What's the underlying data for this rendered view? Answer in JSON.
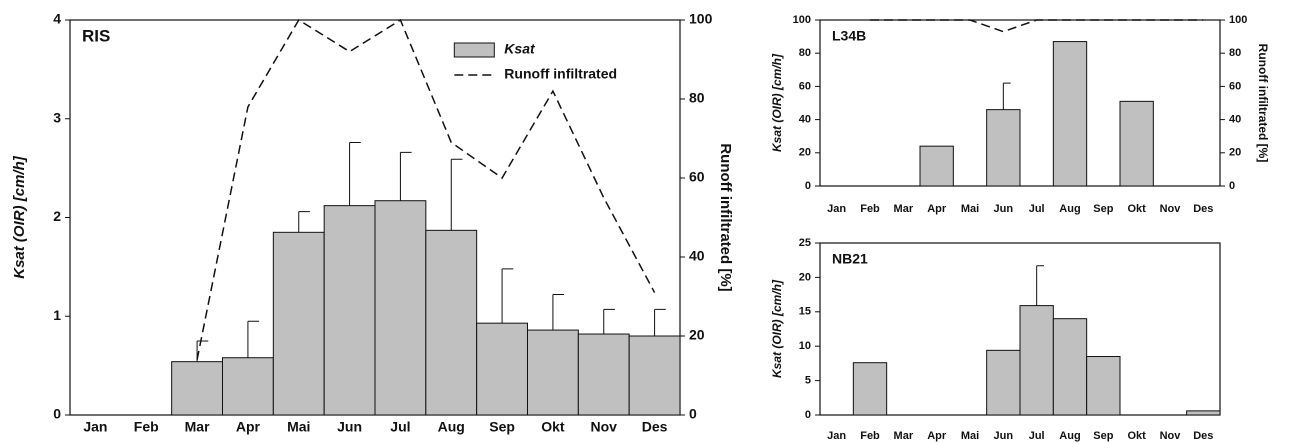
{
  "chart_data": [
    {
      "type": "bar",
      "title": "RIS",
      "categories": [
        "Jan",
        "Feb",
        "Mar",
        "Apr",
        "Mai",
        "Jun",
        "Jul",
        "Aug",
        "Sep",
        "Okt",
        "Nov",
        "Des"
      ],
      "series": [
        {
          "name": "Ksat",
          "color": "#c0c0c0",
          "values": [
            0,
            0,
            0.54,
            0.58,
            1.85,
            2.12,
            2.17,
            1.87,
            0.93,
            0.86,
            0.82,
            0.8
          ],
          "errors": [
            null,
            null,
            0.21,
            0.37,
            0.21,
            0.64,
            0.49,
            0.72,
            0.55,
            0.36,
            0.25,
            0.27
          ]
        },
        {
          "name": "Runoff infiltrated",
          "color": "#111111",
          "axis": "y2",
          "values": [
            null,
            null,
            14,
            78,
            100,
            92,
            100,
            69,
            60,
            82,
            55,
            31
          ]
        }
      ],
      "ylabel": "Ksat (OIR) [cm/h]",
      "y2label": "Runoff infiltrated [%]",
      "ylim": [
        0,
        4
      ],
      "yticks": [
        0,
        1,
        2,
        3,
        4
      ],
      "y2lim": [
        0,
        100
      ],
      "y2ticks": [
        0,
        20,
        40,
        60,
        80,
        100
      ],
      "legend": "upper right"
    },
    {
      "type": "bar",
      "title": "L34B",
      "categories": [
        "Jan",
        "Feb",
        "Mar",
        "Apr",
        "Mai",
        "Jun",
        "Jul",
        "Aug",
        "Sep",
        "Okt",
        "Nov",
        "Des"
      ],
      "series": [
        {
          "name": "Ksat",
          "color": "#c0c0c0",
          "values": [
            0,
            0,
            0,
            24,
            0,
            46,
            0,
            87,
            0,
            51,
            0,
            0
          ],
          "errors": [
            null,
            null,
            null,
            null,
            null,
            16,
            null,
            null,
            null,
            null,
            null,
            null
          ]
        },
        {
          "name": "Runoff infiltrated",
          "color": "#111111",
          "axis": "y2",
          "values": [
            null,
            100,
            100,
            100,
            100,
            93,
            100,
            100,
            100,
            100,
            100,
            100
          ]
        }
      ],
      "ylabel": "Ksat (OIR) [cm/h]",
      "y2label": "Runoff infiltrated [%]",
      "ylim": [
        0,
        100
      ],
      "yticks": [
        0,
        20,
        40,
        60,
        80,
        100
      ],
      "y2lim": [
        0,
        100
      ],
      "y2ticks": [
        0,
        20,
        40,
        60,
        80,
        100
      ]
    },
    {
      "type": "bar",
      "title": "NB21",
      "categories": [
        "Jan",
        "Feb",
        "Mar",
        "Apr",
        "Mai",
        "Jun",
        "Jul",
        "Aug",
        "Sep",
        "Okt",
        "Nov",
        "Des"
      ],
      "series": [
        {
          "name": "Ksat",
          "color": "#c0c0c0",
          "values": [
            0,
            7.6,
            0,
            0,
            0,
            9.4,
            15.9,
            14.0,
            8.5,
            0,
            0,
            0.6
          ],
          "errors": [
            null,
            null,
            null,
            null,
            null,
            null,
            5.8,
            null,
            null,
            null,
            null,
            null
          ]
        }
      ],
      "ylabel": "Ksat (OIR) [cm/h]",
      "ylim": [
        0,
        25
      ],
      "yticks": [
        0,
        5,
        10,
        15,
        20,
        25
      ]
    }
  ]
}
